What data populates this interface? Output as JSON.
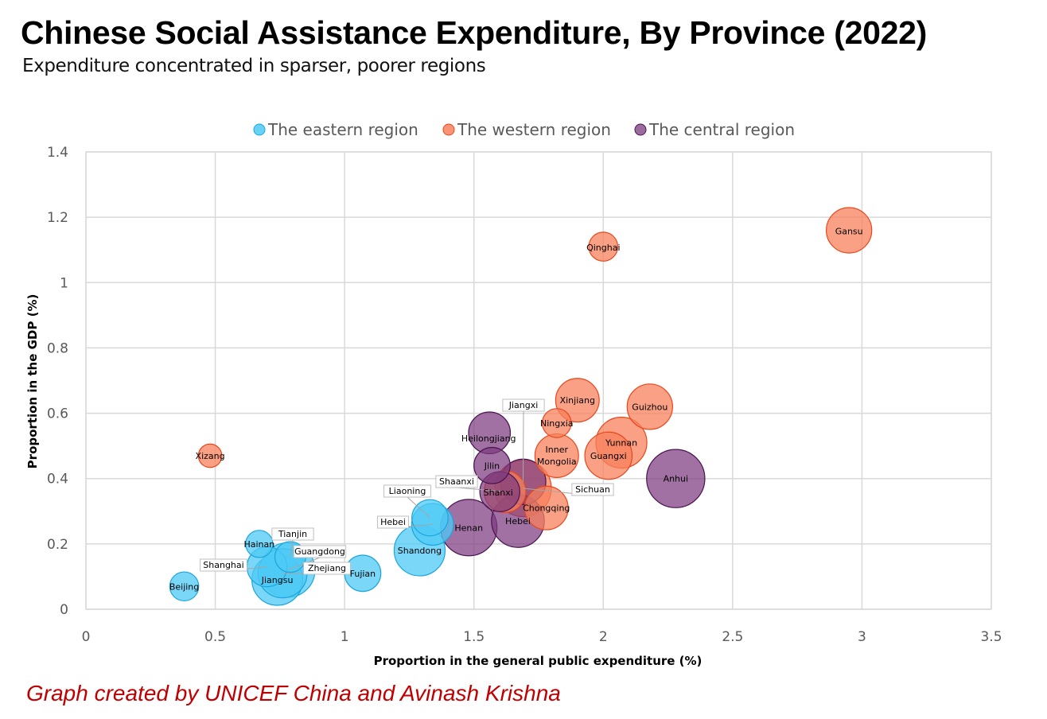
{
  "title": "Chinese Social Assistance Expenditure, By Province (2022)",
  "subtitle": "Expenditure concentrated in sparser, poorer regions",
  "credit": "Graph created by UNICEF China and Avinash Krishna",
  "colors": {
    "eastern_fill": "#4ec9f5",
    "eastern_stroke": "#1aa6dc",
    "western_fill": "#f7805c",
    "western_stroke": "#e8471b",
    "central_fill": "#7b3a7e",
    "central_stroke": "#4a1450",
    "grid": "#d9d9d9"
  },
  "chart_data": {
    "type": "bubble",
    "title": "Chinese Social Assistance Expenditure, By Province (2022)",
    "xlabel": "Proportion in the general public expenditure (%)",
    "ylabel": "Proportion in the GDP (%)",
    "xlim": [
      0,
      3.5
    ],
    "ylim": [
      0,
      1.4
    ],
    "xticks": [
      0,
      0.5,
      1,
      1.5,
      2,
      2.5,
      3,
      3.5
    ],
    "yticks": [
      0,
      0.2,
      0.4,
      0.6,
      0.8,
      1,
      1.2,
      1.4
    ],
    "xtick_labels": [
      "0",
      "0.5",
      "1",
      "1.5",
      "2",
      "2.5",
      "3",
      "3.5"
    ],
    "ytick_labels": [
      "0",
      "0.2",
      "0.4",
      "0.6",
      "0.8",
      "1",
      "1.2",
      "1.4"
    ],
    "grid": true,
    "legend_position": "top-center",
    "series": [
      {
        "name": "The eastern region",
        "key": "eastern",
        "points": [
          {
            "label": "Beijing",
            "x": 0.38,
            "y": 0.07,
            "size": 0.4
          },
          {
            "label": "Hainan",
            "x": 0.67,
            "y": 0.2,
            "size": 0.35
          },
          {
            "label": "Tianjin",
            "x": 0.79,
            "y": 0.16,
            "size": 0.45
          },
          {
            "label": "Shanghai",
            "x": 0.7,
            "y": 0.13,
            "size": 0.7
          },
          {
            "label": "Guangdong",
            "x": 0.78,
            "y": 0.12,
            "size": 1.1
          },
          {
            "label": "Zhejiang",
            "x": 0.76,
            "y": 0.11,
            "size": 0.95
          },
          {
            "label": "Jiangsu",
            "x": 0.74,
            "y": 0.09,
            "size": 1.0
          },
          {
            "label": "Fujian",
            "x": 1.07,
            "y": 0.11,
            "size": 0.6
          },
          {
            "label": "Shandong",
            "x": 1.29,
            "y": 0.18,
            "size": 1.0
          },
          {
            "label": "Liaoning",
            "x": 1.33,
            "y": 0.28,
            "size": 0.6
          },
          {
            "label": "Hebei",
            "x": 1.34,
            "y": 0.26,
            "size": 0.75
          }
        ]
      },
      {
        "name": "The western region",
        "key": "western",
        "points": [
          {
            "label": "Xizang",
            "x": 0.48,
            "y": 0.47,
            "size": 0.25
          },
          {
            "label": "Qinghai",
            "x": 2.0,
            "y": 1.11,
            "size": 0.4
          },
          {
            "label": "Gansu",
            "x": 2.95,
            "y": 1.16,
            "size": 0.85
          },
          {
            "label": "Xinjiang",
            "x": 1.9,
            "y": 0.64,
            "size": 0.8
          },
          {
            "label": "Guizhou",
            "x": 2.18,
            "y": 0.62,
            "size": 0.85
          },
          {
            "label": "Ningxia",
            "x": 1.82,
            "y": 0.57,
            "size": 0.4
          },
          {
            "label": "Yunnan",
            "x": 2.07,
            "y": 0.51,
            "size": 1.0
          },
          {
            "label": "Guangxi",
            "x": 2.02,
            "y": 0.47,
            "size": 0.9
          },
          {
            "label": "Inner Mongolia",
            "x": 1.82,
            "y": 0.47,
            "size": 0.8
          },
          {
            "label": "Shaanxi",
            "x": 1.62,
            "y": 0.36,
            "size": 0.75
          },
          {
            "label": "Sichuan",
            "x": 1.69,
            "y": 0.37,
            "size": 1.15
          },
          {
            "label": "Chongqing",
            "x": 1.78,
            "y": 0.31,
            "size": 0.8
          }
        ]
      },
      {
        "name": "The central region",
        "key": "central",
        "points": [
          {
            "label": "Heilongjiang",
            "x": 1.56,
            "y": 0.54,
            "size": 0.75
          },
          {
            "label": "Jilin",
            "x": 1.57,
            "y": 0.44,
            "size": 0.6
          },
          {
            "label": "Jiangxi",
            "x": 1.69,
            "y": 0.39,
            "size": 0.85
          },
          {
            "label": "Shanxi",
            "x": 1.6,
            "y": 0.36,
            "size": 0.7
          },
          {
            "label": "Anhui",
            "x": 2.28,
            "y": 0.4,
            "size": 1.2
          },
          {
            "label": "Henan",
            "x": 1.48,
            "y": 0.25,
            "size": 1.15
          },
          {
            "label": "Hebei",
            "x": 1.67,
            "y": 0.27,
            "size": 1.05
          }
        ]
      }
    ]
  }
}
